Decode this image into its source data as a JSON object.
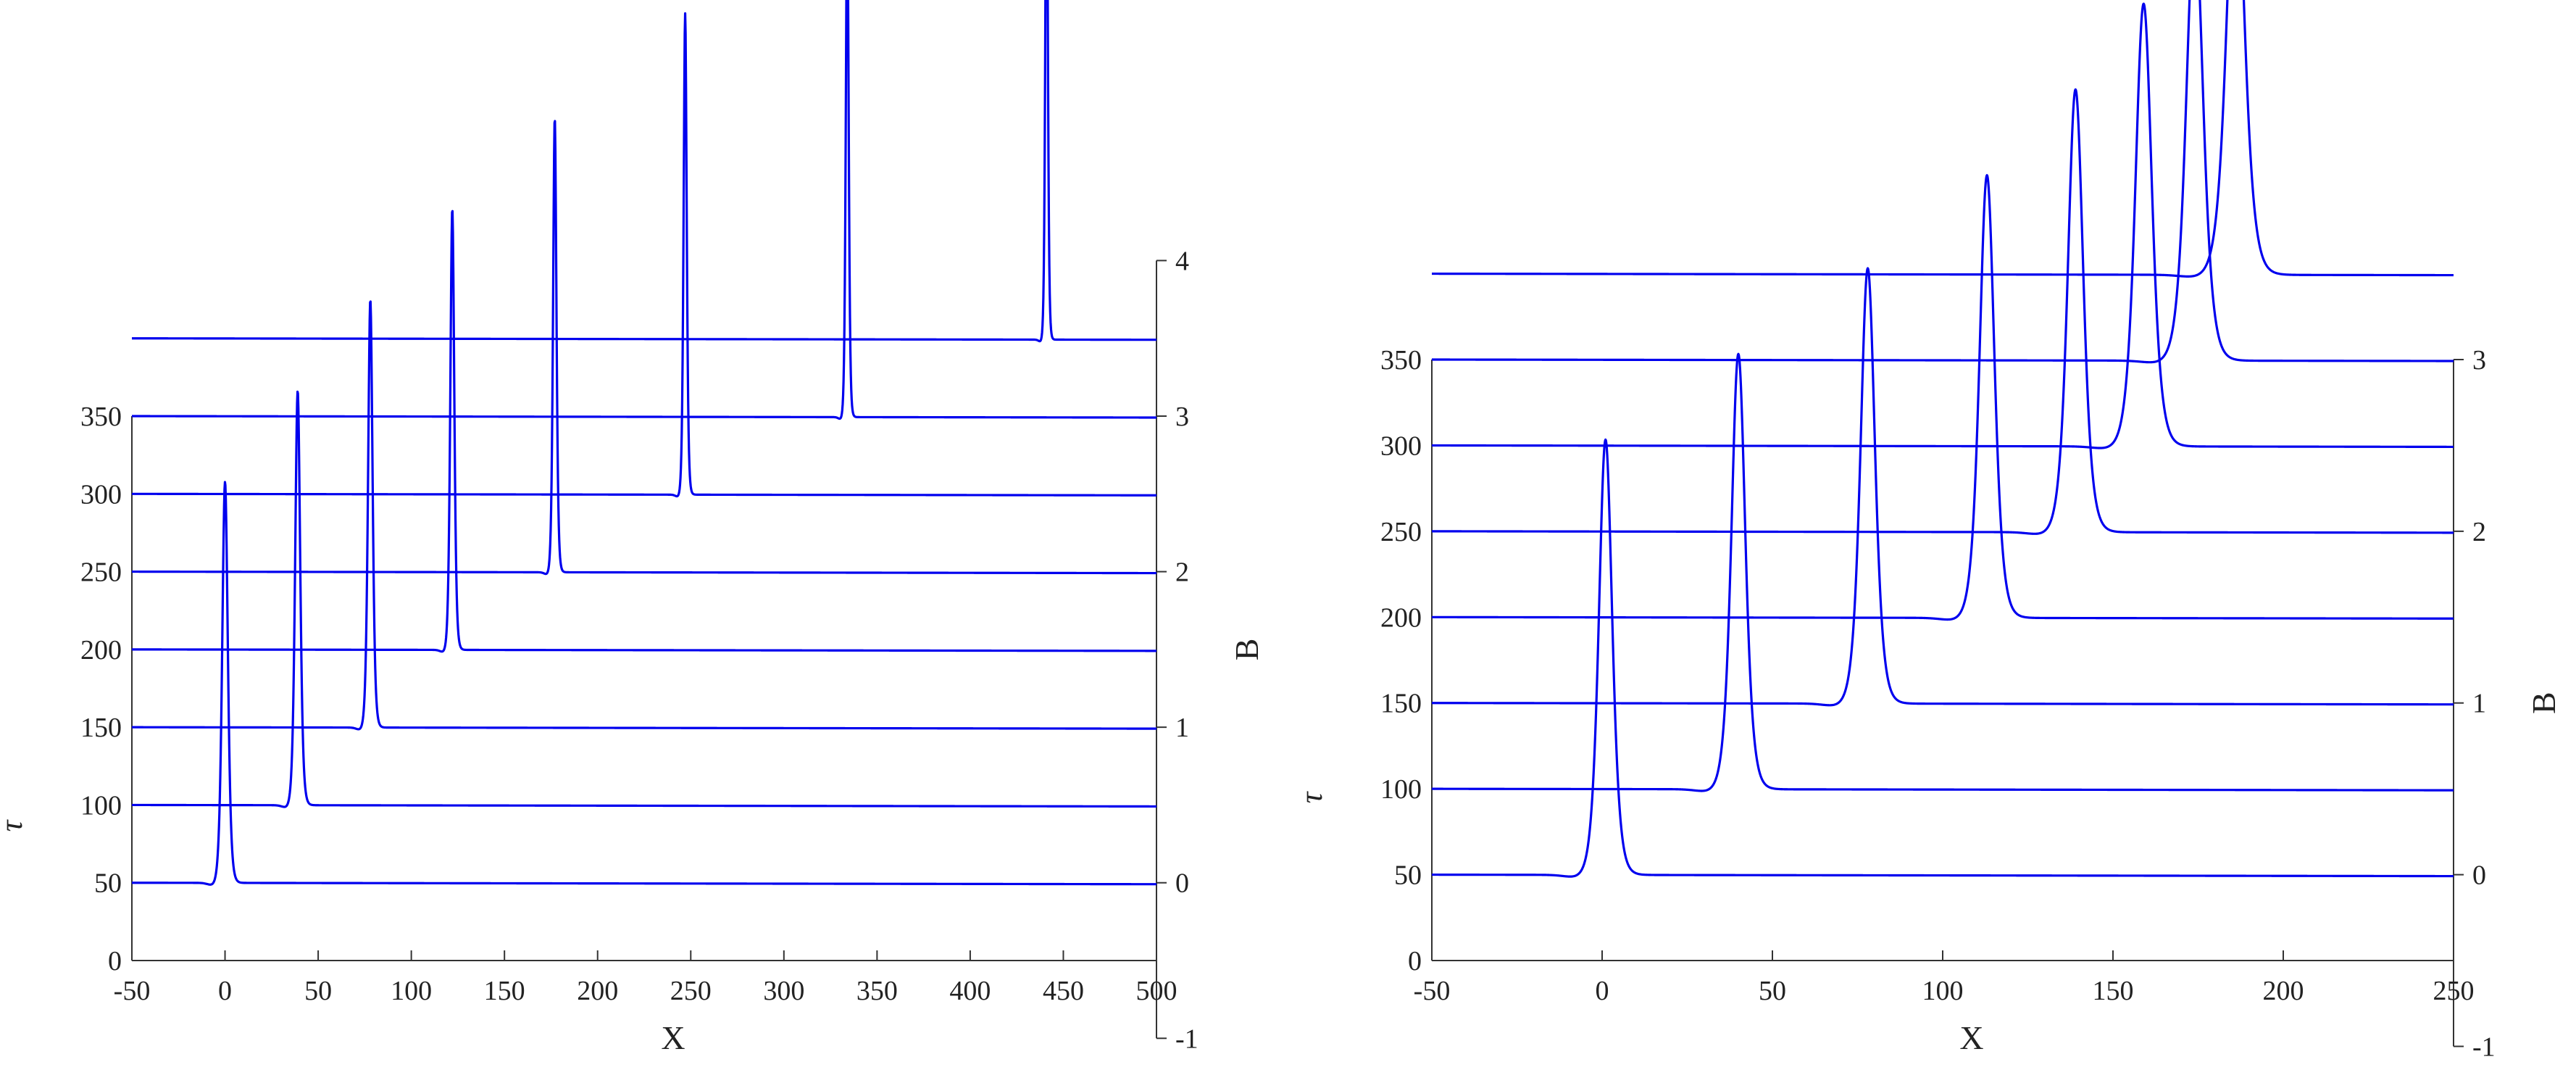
{
  "colors": {
    "trace": "#0000ee",
    "axis": "#333333",
    "text": "#222222"
  },
  "chart_data": [
    {
      "type": "line",
      "subtype": "waterfall",
      "xlabel": "X",
      "ylabel": "τ",
      "y2label": "B",
      "xlim": [
        -50,
        500
      ],
      "ylim": [
        0,
        350
      ],
      "y2lim": [
        -1,
        4
      ],
      "xticks": [
        "-50",
        "0",
        "50",
        "100",
        "150",
        "200",
        "250",
        "300",
        "350",
        "400",
        "450",
        "500"
      ],
      "yticks": [
        "0",
        "50",
        "100",
        "150",
        "200",
        "250",
        "300",
        "350"
      ],
      "y2ticks": [
        "-1",
        "0",
        "1",
        "2",
        "3",
        "4"
      ],
      "traces": [
        {
          "tau": 50,
          "peak_x": 0,
          "peak_height": 3.0,
          "width": 2.0
        },
        {
          "tau": 100,
          "peak_x": 39,
          "peak_height": 3.1,
          "width": 1.8
        },
        {
          "tau": 150,
          "peak_x": 78,
          "peak_height": 3.2,
          "width": 1.6
        },
        {
          "tau": 200,
          "peak_x": 122,
          "peak_height": 3.3,
          "width": 1.4
        },
        {
          "tau": 250,
          "peak_x": 177,
          "peak_height": 3.4,
          "width": 1.2
        },
        {
          "tau": 300,
          "peak_x": 247,
          "peak_height": 3.6,
          "width": 1.1
        },
        {
          "tau": 350,
          "peak_x": 334,
          "peak_height": 3.9,
          "width": 1.0
        },
        {
          "tau": 400,
          "peak_x": 441,
          "peak_height": 4.0,
          "width": 0.9
        }
      ]
    },
    {
      "type": "line",
      "subtype": "waterfall",
      "xlabel": "X",
      "ylabel": "τ",
      "y2label": "B",
      "xlim": [
        -50,
        250
      ],
      "ylim": [
        0,
        350
      ],
      "y2lim": [
        -1,
        3
      ],
      "xticks": [
        "-50",
        "0",
        "50",
        "100",
        "150",
        "200",
        "250"
      ],
      "yticks": [
        "0",
        "50",
        "100",
        "150",
        "200",
        "250",
        "300",
        "350"
      ],
      "y2ticks": [
        "-1",
        "0",
        "1",
        "2",
        "3"
      ],
      "traces": [
        {
          "tau": 50,
          "peak_x": 1,
          "peak_height": 2.95,
          "width": 2.6
        },
        {
          "tau": 100,
          "peak_x": 40,
          "peak_height": 2.95,
          "width": 2.7
        },
        {
          "tau": 150,
          "peak_x": 78,
          "peak_height": 2.95,
          "width": 2.8
        },
        {
          "tau": 200,
          "peak_x": 113,
          "peak_height": 3.0,
          "width": 2.9
        },
        {
          "tau": 250,
          "peak_x": 139,
          "peak_height": 3.0,
          "width": 3.0
        },
        {
          "tau": 300,
          "peak_x": 159,
          "peak_height": 3.0,
          "width": 3.2
        },
        {
          "tau": 350,
          "peak_x": 174,
          "peak_height": 3.0,
          "width": 3.3
        },
        {
          "tau": 400,
          "peak_x": 186,
          "peak_height": 2.9,
          "width": 3.5
        }
      ]
    }
  ]
}
